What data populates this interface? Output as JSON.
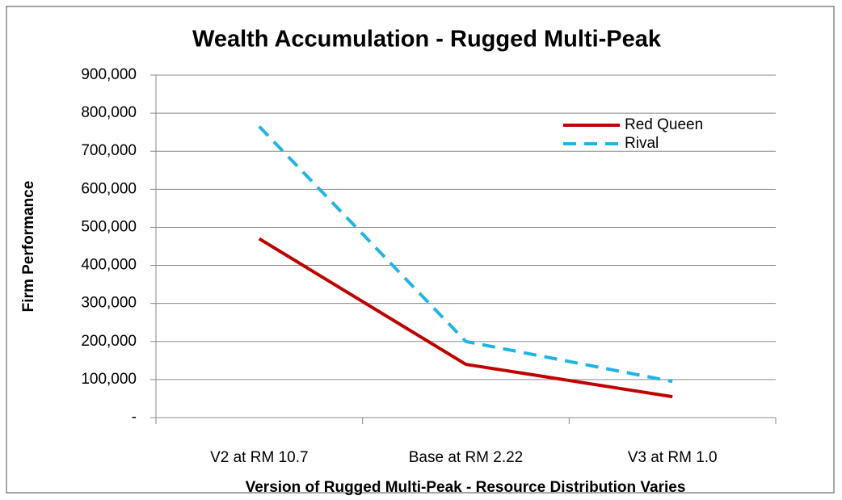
{
  "chart_data": {
    "type": "line",
    "title": "Wealth Accumulation - Rugged Multi-Peak",
    "x_label": "Version of Rugged Multi-Peak - Resource Distribution Varies",
    "y_label": "Firm Performance",
    "categories": [
      "V2 at RM 10.7",
      "Base at RM 2.22",
      "V3 at RM 1.0"
    ],
    "series": [
      {
        "name": "Red Queen",
        "color": "#c00000",
        "dash": false,
        "values": [
          470000,
          140000,
          55000
        ]
      },
      {
        "name": "Rival",
        "color": "#1fb4e6",
        "dash": true,
        "values": [
          765000,
          200000,
          95000
        ]
      }
    ],
    "ylim": [
      0,
      900000
    ],
    "yticks": [
      {
        "value": 0,
        "label": "-"
      },
      {
        "value": 100000,
        "label": "100,000"
      },
      {
        "value": 200000,
        "label": "200,000"
      },
      {
        "value": 300000,
        "label": "300,000"
      },
      {
        "value": 400000,
        "label": "400,000"
      },
      {
        "value": 500000,
        "label": "500,000"
      },
      {
        "value": 600000,
        "label": "600,000"
      },
      {
        "value": 700000,
        "label": "700,000"
      },
      {
        "value": 800000,
        "label": "800,000"
      },
      {
        "value": 900000,
        "label": "900,000"
      }
    ],
    "grid": true,
    "legend_position": "top-right"
  }
}
